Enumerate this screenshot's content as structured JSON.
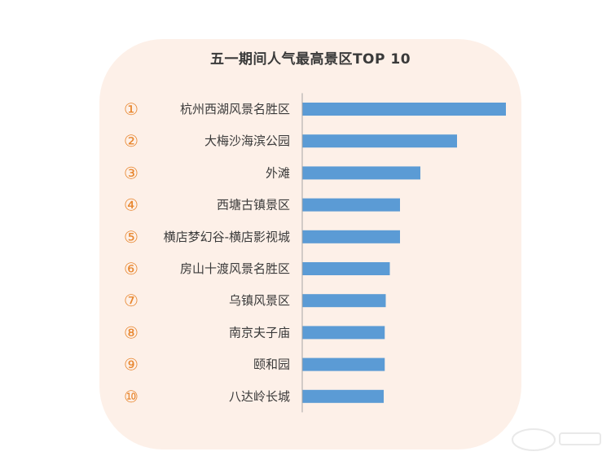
{
  "chart_data": {
    "type": "bar",
    "orientation": "horizontal",
    "title": "五一期间人气最高景区TOP 10",
    "ranks": [
      "①",
      "②",
      "③",
      "④",
      "⑤",
      "⑥",
      "⑦",
      "⑧",
      "⑨",
      "⑩"
    ],
    "categories": [
      "杭州西湖风景名胜区",
      "大梅沙海滨公园",
      "外滩",
      "西塘古镇景区",
      "横店梦幻谷-横店影视城",
      "房山十渡风景名胜区",
      "乌镇风景区",
      "南京夫子庙",
      "颐和园",
      "八达岭长城"
    ],
    "values": [
      100,
      76,
      58,
      48,
      48,
      43,
      41,
      40.5,
      40.5,
      40
    ],
    "value_unit": "relative (no axis printed)",
    "xlim": [
      0,
      100
    ],
    "grid": false,
    "legend": "none",
    "colors": {
      "bar": "#5b9bd5",
      "rank": "#e8862e",
      "card_background": "#fdf0e8",
      "text": "#3a3a3a"
    }
  }
}
